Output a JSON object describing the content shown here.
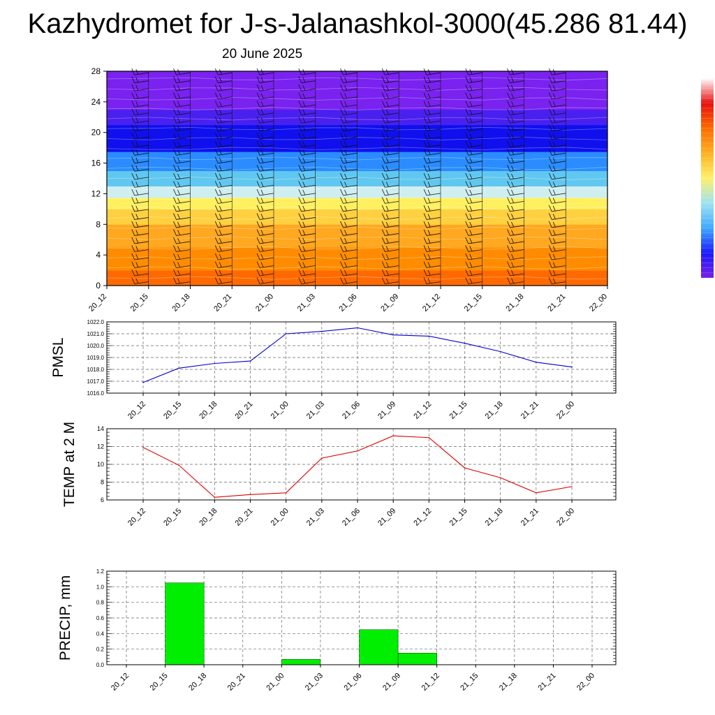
{
  "title": "Kazhydromet for J-s-Jalanashkol-3000(45.286 81.44)",
  "subtitle": "20 June 2025",
  "colors": {
    "pmsl_line": "#0000cc",
    "temp_line": "#dd0000",
    "precip_bar": "#00ee00",
    "grid": "#666666"
  },
  "chart_data": [
    {
      "type": "heatmap",
      "title": "",
      "xlabel": "",
      "ylabel": "",
      "x": [
        "20_12",
        "20_15",
        "20_18",
        "20_21",
        "21_00",
        "21_03",
        "21_06",
        "21_09",
        "21_12",
        "21_15",
        "21_18",
        "21_21",
        "22_00"
      ],
      "yticks": [
        0,
        4,
        8,
        12,
        16,
        20,
        24,
        28
      ],
      "ylim": [
        0,
        28
      ],
      "levels_shown": "temperature shading with wind barbs",
      "colorbar": [
        "#7b1fe6",
        "#1a1aff",
        "#3fa9ff",
        "#9ee3f0",
        "#fff06b",
        "#ffb020",
        "#ff6a00",
        "#e81010",
        "#ffffff"
      ],
      "bands": [
        {
          "from": 0,
          "to": 2,
          "color": "#ff6a00"
        },
        {
          "from": 2,
          "to": 5,
          "color": "#ff8c00"
        },
        {
          "from": 5,
          "to": 8,
          "color": "#ffa820"
        },
        {
          "from": 8,
          "to": 10,
          "color": "#ffd040"
        },
        {
          "from": 10,
          "to": 11.5,
          "color": "#fff060"
        },
        {
          "from": 11.5,
          "to": 13,
          "color": "#cfeef0"
        },
        {
          "from": 13,
          "to": 15,
          "color": "#60c8f0"
        },
        {
          "from": 15,
          "to": 17.5,
          "color": "#2a8cff"
        },
        {
          "from": 17.5,
          "to": 21,
          "color": "#1010ee"
        },
        {
          "from": 21,
          "to": 23,
          "color": "#4a20f0"
        },
        {
          "from": 23,
          "to": 28,
          "color": "#7a22f0"
        }
      ],
      "grid": false
    },
    {
      "type": "line",
      "ylabel": "PMSL",
      "x": [
        "20_12",
        "20_15",
        "20_18",
        "20_21",
        "21_00",
        "21_03",
        "21_06",
        "21_09",
        "21_12",
        "21_15",
        "21_18",
        "21_21",
        "22_00"
      ],
      "values": [
        1016.9,
        1018.1,
        1018.5,
        1018.7,
        1021.0,
        1021.2,
        1021.5,
        1020.9,
        1020.8,
        1020.2,
        1019.5,
        1018.6,
        1018.2
      ],
      "ylim": [
        1016.0,
        1022.0
      ],
      "yticks": [
        "1016.0",
        "1017.0",
        "1018.0",
        "1019.0",
        "1020.0",
        "1021.0",
        "1022.0"
      ],
      "grid": true
    },
    {
      "type": "line",
      "ylabel": "TEMP at 2 M",
      "x": [
        "20_12",
        "20_15",
        "20_18",
        "20_21",
        "21_00",
        "21_03",
        "21_06",
        "21_09",
        "21_12",
        "21_15",
        "21_18",
        "21_21",
        "22_00"
      ],
      "values": [
        11.9,
        9.9,
        6.3,
        6.6,
        6.8,
        10.7,
        11.5,
        13.2,
        13.0,
        9.6,
        8.5,
        6.8,
        7.5
      ],
      "ylim": [
        6,
        14
      ],
      "yticks": [
        "6",
        "8",
        "10",
        "12",
        "14"
      ],
      "grid": true
    },
    {
      "type": "bar",
      "ylabel": "PRECIP, mm",
      "categories": [
        "20_12",
        "20_15",
        "20_18",
        "20_21",
        "21_00",
        "21_03",
        "21_06",
        "21_09",
        "21_12",
        "21_15",
        "21_18",
        "21_21",
        "22_00"
      ],
      "values": [
        0,
        1.05,
        0,
        0,
        0.07,
        0,
        0.45,
        0.15,
        0,
        0,
        0,
        0,
        0
      ],
      "ylim": [
        0,
        1.2
      ],
      "yticks": [
        "0.0",
        "0.2",
        "0.4",
        "0.6",
        "0.8",
        "1.0",
        "1.2"
      ],
      "grid": true
    }
  ]
}
